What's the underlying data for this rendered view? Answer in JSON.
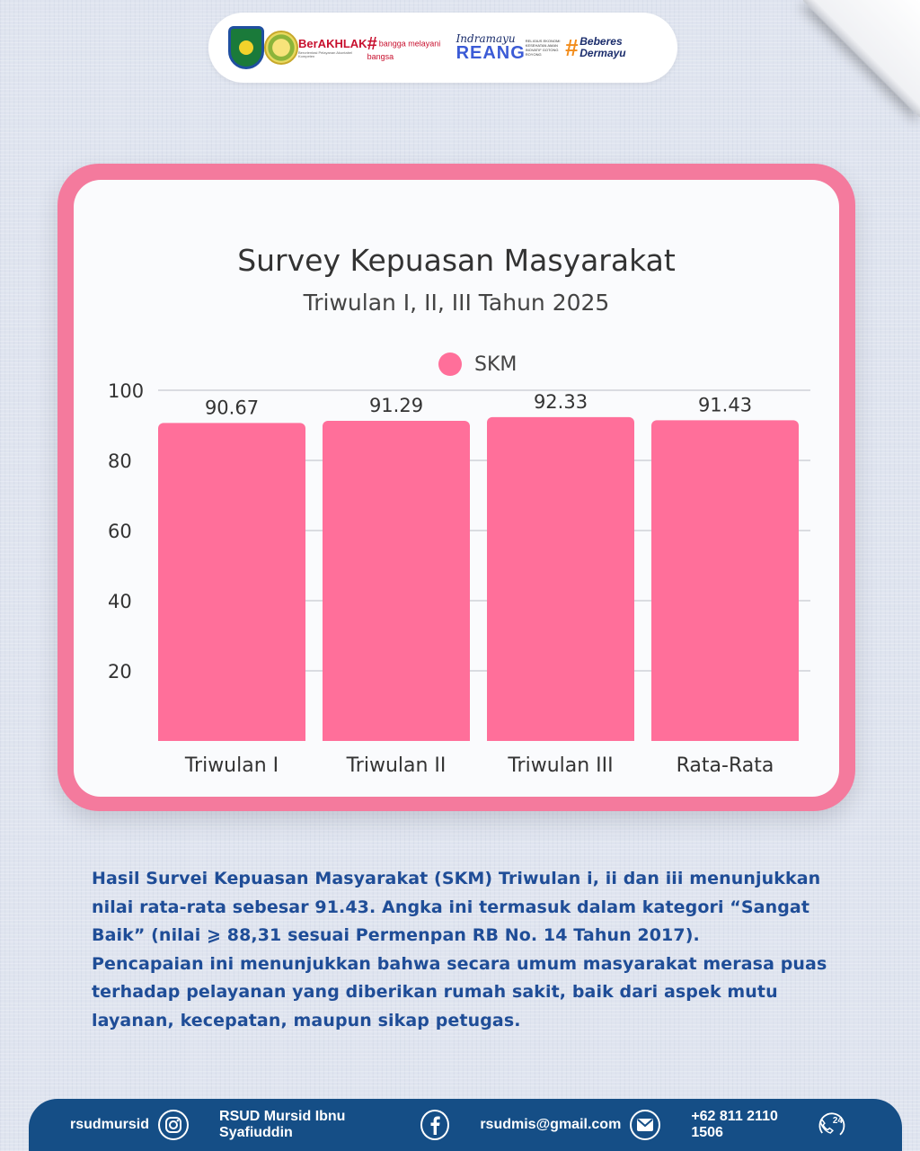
{
  "header": {
    "logos": [
      {
        "name": "indramayu-emblem"
      },
      {
        "name": "provincial-emblem"
      },
      {
        "name": "berakhlak",
        "text": "BerAKHLAK"
      },
      {
        "name": "bangga-melayani-bangsa",
        "text": "bangga melayani bangsa"
      },
      {
        "name": "indramayu-reang",
        "script": "Indramayu",
        "text": "REANG"
      },
      {
        "name": "beberes-dermayu",
        "text": "Beberes Dermayu"
      }
    ]
  },
  "chart_data": {
    "type": "bar",
    "title": "Survey Kepuasan Masyarakat",
    "subtitle": "Triwulan I, II, III Tahun 2025",
    "legend": "SKM",
    "series_name": "SKM",
    "categories": [
      "Triwulan I",
      "Triwulan II",
      "Triwulan III",
      "Rata-Rata"
    ],
    "values": [
      90.67,
      91.29,
      92.33,
      91.43
    ],
    "value_labels": [
      "90.67",
      "91.29",
      "92.33",
      "91.43"
    ],
    "yticks": [
      20,
      40,
      60,
      80,
      100
    ],
    "ylim": [
      0,
      100
    ],
    "grid": true,
    "bar_color": "#ff6f9a"
  },
  "description": {
    "paragraph1": "Hasil Survei Kepuasan Masyarakat (SKM) Triwulan i, ii dan iii menunjukkan nilai rata-rata sebesar 91.43. Angka ini termasuk dalam kategori “Sangat Baik” (nilai ⩾ 88,31 sesuai Permenpan RB No. 14 Tahun 2017).",
    "paragraph2": "Pencapaian ini menunjukkan bahwa secara umum masyarakat merasa puas terhadap pelayanan yang diberikan rumah sakit, baik dari aspek mutu layanan, kecepatan, maupun sikap petugas."
  },
  "footer": {
    "instagram": "rsudmursid",
    "facebook": "RSUD Mursid Ibnu Syafiuddin",
    "email": "rsudmis@gmail.com",
    "phone": "+62 811 2110 1506",
    "phone_badge": "24"
  },
  "colors": {
    "card_border": "#f47a9d",
    "text_blue": "#1f4d97",
    "footer_bg": "#154e86"
  }
}
